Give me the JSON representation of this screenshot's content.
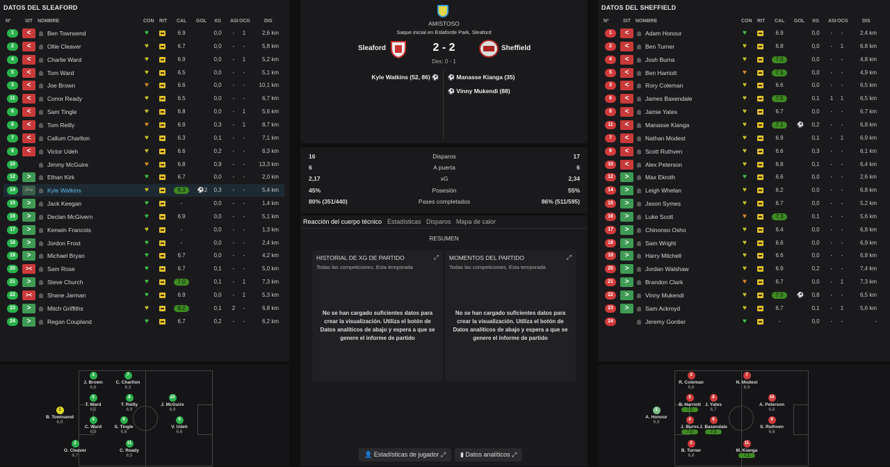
{
  "left": {
    "title": "DATOS DEL SLEAFORD",
    "headers": {
      "no": "Nº",
      "sit": "SIT",
      "nombre": "NOMBRE",
      "con": "CON",
      "rit": "RIT",
      "cal": "CAL",
      "gol": "GOL",
      "xg": "XG",
      "asi": "ASI",
      "ocg": "OCG",
      "dis": "DIS"
    },
    "rows": [
      {
        "n": "1",
        "c": "g",
        "sit": "sub",
        "sl": "<",
        "name": "Ben Townsend",
        "h": "g",
        "cal": "6.9",
        "hi": false,
        "gol": "",
        "xg": "0,0",
        "asi": "-",
        "ocg": "1",
        "dis": "2,6 km"
      },
      {
        "n": "2",
        "c": "g",
        "sit": "sub",
        "sl": "<",
        "name": "Ollie Cleaver",
        "h": "y",
        "cal": "6.7",
        "hi": false,
        "gol": "",
        "xg": "0,0",
        "asi": "-",
        "ocg": "-",
        "dis": "5,8 km"
      },
      {
        "n": "4",
        "c": "g",
        "sit": "sub",
        "sl": "<",
        "name": "Charlie Ward",
        "h": "y",
        "cal": "6.9",
        "hi": false,
        "gol": "",
        "xg": "0,0",
        "asi": "-",
        "ocg": "1",
        "dis": "5,2 km"
      },
      {
        "n": "5",
        "c": "g",
        "sit": "sub",
        "sl": "<",
        "name": "Tom Ward",
        "h": "y",
        "cal": "6.5",
        "hi": false,
        "gol": "",
        "xg": "0,0",
        "asi": "-",
        "ocg": "-",
        "dis": "5,1 km"
      },
      {
        "n": "3",
        "c": "g",
        "sit": "sub",
        "sl": "<",
        "name": "Joe Brown",
        "h": "o",
        "cal": "6.6",
        "hi": false,
        "gol": "",
        "xg": "0,0",
        "asi": "-",
        "ocg": "-",
        "dis": "10,1 km"
      },
      {
        "n": "11",
        "c": "g",
        "sit": "sub",
        "sl": "<",
        "name": "Conor Ready",
        "h": "y",
        "cal": "6.5",
        "hi": false,
        "gol": "",
        "xg": "0,0",
        "asi": "-",
        "ocg": "-",
        "dis": "6,7 km"
      },
      {
        "n": "6",
        "c": "g",
        "sit": "sub",
        "sl": "<",
        "name": "Sam Tingle",
        "h": "y",
        "cal": "6.8",
        "hi": false,
        "gol": "",
        "xg": "0,0",
        "asi": "-",
        "ocg": "1",
        "dis": "5,6 km"
      },
      {
        "n": "8",
        "c": "g",
        "sit": "sub",
        "sl": "<",
        "name": "Tom Reilly",
        "h": "o",
        "cal": "6.9",
        "hi": false,
        "gol": "",
        "xg": "0,3",
        "asi": "-",
        "ocg": "1",
        "dis": "8,7 km"
      },
      {
        "n": "7",
        "c": "g",
        "sit": "sub",
        "sl": "<",
        "name": "Callum Charlton",
        "h": "y",
        "cal": "6.3",
        "hi": false,
        "gol": "",
        "xg": "0,1",
        "asi": "-",
        "ocg": "-",
        "dis": "7,1 km"
      },
      {
        "n": "9",
        "c": "g",
        "sit": "sub",
        "sl": "<",
        "name": "Victor Udeh",
        "h": "y",
        "cal": "6.6",
        "hi": false,
        "gol": "",
        "xg": "0,2",
        "asi": "-",
        "ocg": "-",
        "dis": "6,3 km"
      },
      {
        "n": "10",
        "c": "g",
        "sit": "none",
        "sl": "",
        "name": "Jimmy McGuire",
        "h": "o",
        "cal": "6.8",
        "hi": false,
        "gol": "",
        "xg": "0,9",
        "asi": "-",
        "ocg": "-",
        "dis": "13,3 km"
      },
      {
        "n": "12",
        "c": "g",
        "sit": "bench",
        "sl": ">",
        "name": "Ethan Kirk",
        "h": "g",
        "cal": "6.7",
        "hi": false,
        "gol": "",
        "xg": "0,0",
        "asi": "-",
        "ocg": "-",
        "dis": "2,0 km"
      },
      {
        "n": "14",
        "c": "g",
        "sit": "ply",
        "sl": "JPar",
        "name": "Kyle Watkins",
        "h": "y",
        "cal": "8.3",
        "hi": true,
        "gol": "⚽2",
        "xg": "0,3",
        "asi": "-",
        "ocg": "-",
        "dis": "5,4 km",
        "sel": true
      },
      {
        "n": "15",
        "c": "g",
        "sit": "bench",
        "sl": ">",
        "name": "Jack Keegan",
        "h": "g",
        "cal": "-",
        "hi": false,
        "gol": "",
        "xg": "0,0",
        "asi": "-",
        "ocg": "-",
        "dis": "1,4 km"
      },
      {
        "n": "16",
        "c": "g",
        "sit": "bench",
        "sl": ">",
        "name": "Declan McGivern",
        "h": "g",
        "cal": "6.9",
        "hi": false,
        "gol": "",
        "xg": "0,0",
        "asi": "-",
        "ocg": "-",
        "dis": "5,1 km"
      },
      {
        "n": "17",
        "c": "g",
        "sit": "bench",
        "sl": ">",
        "name": "Kenwin Francois",
        "h": "y",
        "cal": "-",
        "hi": false,
        "gol": "",
        "xg": "0,0",
        "asi": "-",
        "ocg": "-",
        "dis": "1,3 km"
      },
      {
        "n": "18",
        "c": "g",
        "sit": "bench",
        "sl": ">",
        "name": "Jordon Frost",
        "h": "g",
        "cal": "-",
        "hi": false,
        "gol": "",
        "xg": "0,0",
        "asi": "-",
        "ocg": "-",
        "dis": "2,4 km"
      },
      {
        "n": "19",
        "c": "g",
        "sit": "bench",
        "sl": ">",
        "name": "Michael Bryan",
        "h": "g",
        "cal": "6.7",
        "hi": false,
        "gol": "",
        "xg": "0,0",
        "asi": "-",
        "ocg": "-",
        "dis": "4,2 km"
      },
      {
        "n": "20",
        "c": "g",
        "sit": "off",
        "sl": "><",
        "name": "Sam Rose",
        "h": "g",
        "cal": "6.7",
        "hi": false,
        "gol": "",
        "xg": "0,1",
        "asi": "-",
        "ocg": "-",
        "dis": "5,0 km"
      },
      {
        "n": "21",
        "c": "g",
        "sit": "bench",
        "sl": ">",
        "name": "Steve Church",
        "h": "g",
        "cal": "7.0",
        "hi": true,
        "gol": "",
        "xg": "0,1",
        "asi": "-",
        "ocg": "1",
        "dis": "7,3 km"
      },
      {
        "n": "22",
        "c": "g",
        "sit": "off",
        "sl": "><",
        "name": "Shane Jarman",
        "h": "g",
        "cal": "6.9",
        "hi": false,
        "gol": "",
        "xg": "0,0",
        "asi": "-",
        "ocg": "1",
        "dis": "5,3 km"
      },
      {
        "n": "23",
        "c": "g",
        "sit": "bench",
        "sl": ">",
        "name": "Mitch Griffiths",
        "h": "y",
        "cal": "8.2",
        "hi": true,
        "gol": "",
        "xg": "0,1",
        "asi": "2",
        "ocg": "-",
        "dis": "6,8 km"
      },
      {
        "n": "24",
        "c": "g",
        "sit": "bench",
        "sl": ">",
        "name": "Regan Coupland",
        "h": "g",
        "cal": "6.7",
        "hi": false,
        "gol": "",
        "xg": "0,2",
        "asi": "-",
        "ocg": "-",
        "dis": "6,2 km"
      }
    ]
  },
  "right": {
    "title": "DATOS DEL SHEFFIELD",
    "headers": {
      "no": "Nº",
      "sit": "SIT",
      "nombre": "NOMBRE",
      "con": "CON",
      "rit": "RIT",
      "cal": "CAL",
      "gol": "GOL",
      "xg": "XG",
      "asi": "ASI",
      "ocg": "OCG",
      "dis": "DIS"
    },
    "rows": [
      {
        "n": "1",
        "c": "r",
        "sit": "sub",
        "sl": "<",
        "name": "Adam Honour",
        "h": "g",
        "cal": "6.9",
        "hi": false,
        "gol": "",
        "xg": "0,0",
        "asi": "-",
        "ocg": "-",
        "dis": "2,4 km"
      },
      {
        "n": "2",
        "c": "r",
        "sit": "sub",
        "sl": "<",
        "name": "Ben Turner",
        "h": "y",
        "cal": "6.8",
        "hi": false,
        "gol": "",
        "xg": "0,0",
        "asi": "-",
        "ocg": "1",
        "dis": "6,8 km"
      },
      {
        "n": "4",
        "c": "r",
        "sit": "sub",
        "sl": "<",
        "name": "Josh Burns",
        "h": "y",
        "cal": "7.0",
        "hi": true,
        "gol": "",
        "xg": "0,0",
        "asi": "-",
        "ocg": "-",
        "dis": "4,8 km"
      },
      {
        "n": "5",
        "c": "r",
        "sit": "sub",
        "sl": "<",
        "name": "Ben Harriott",
        "h": "o",
        "cal": "7.5",
        "hi": true,
        "gol": "",
        "xg": "0,0",
        "asi": "-",
        "ocg": "-",
        "dis": "4,9 km"
      },
      {
        "n": "3",
        "c": "r",
        "sit": "sub",
        "sl": "<",
        "name": "Rory Coleman",
        "h": "y",
        "cal": "6.6",
        "hi": false,
        "gol": "",
        "xg": "0,0",
        "asi": "-",
        "ocg": "-",
        "dis": "6,5 km"
      },
      {
        "n": "6",
        "c": "r",
        "sit": "sub",
        "sl": "<",
        "name": "James Baxendale",
        "h": "y",
        "cal": "7.5",
        "hi": true,
        "gol": "",
        "xg": "0,1",
        "asi": "1",
        "ocg": "1",
        "dis": "6,5 km"
      },
      {
        "n": "8",
        "c": "r",
        "sit": "sub",
        "sl": "<",
        "name": "Jamie Yates",
        "h": "y",
        "cal": "6.7",
        "hi": false,
        "gol": "",
        "xg": "0,0",
        "asi": "-",
        "ocg": "-",
        "dis": "6,7 km"
      },
      {
        "n": "11",
        "c": "r",
        "sit": "sub",
        "sl": "<",
        "name": "Manasse Kianga",
        "h": "y",
        "cal": "7.1",
        "hi": true,
        "gol": "⚽",
        "xg": "0,2",
        "asi": "-",
        "ocg": "-",
        "dis": "6,8 km"
      },
      {
        "n": "7",
        "c": "r",
        "sit": "sub",
        "sl": "<",
        "name": "Nathan Modest",
        "h": "y",
        "cal": "6.9",
        "hi": false,
        "gol": "",
        "xg": "0,1",
        "asi": "-",
        "ocg": "1",
        "dis": "6,9 km"
      },
      {
        "n": "9",
        "c": "r",
        "sit": "sub",
        "sl": "<",
        "name": "Scott Ruthven",
        "h": "y",
        "cal": "6.6",
        "hi": false,
        "gol": "",
        "xg": "0,3",
        "asi": "-",
        "ocg": "-",
        "dis": "6,1 km"
      },
      {
        "n": "10",
        "c": "r",
        "sit": "sub",
        "sl": "<",
        "name": "Alex Peterson",
        "h": "y",
        "cal": "6.8",
        "hi": false,
        "gol": "",
        "xg": "0,1",
        "asi": "-",
        "ocg": "-",
        "dis": "6,4 km"
      },
      {
        "n": "12",
        "c": "r",
        "sit": "bench",
        "sl": ">",
        "name": "Max Ekroth",
        "h": "g",
        "cal": "6.6",
        "hi": false,
        "gol": "",
        "xg": "0,0",
        "asi": "-",
        "ocg": "-",
        "dis": "2,6 km"
      },
      {
        "n": "14",
        "c": "r",
        "sit": "bench",
        "sl": ">",
        "name": "Leigh Whelan",
        "h": "y",
        "cal": "6.2",
        "hi": false,
        "gol": "",
        "xg": "0,0",
        "asi": "-",
        "ocg": "-",
        "dis": "6,8 km"
      },
      {
        "n": "15",
        "c": "r",
        "sit": "bench",
        "sl": ">",
        "name": "Jason Symes",
        "h": "y",
        "cal": "6.7",
        "hi": false,
        "gol": "",
        "xg": "0,0",
        "asi": "-",
        "ocg": "-",
        "dis": "5,2 km"
      },
      {
        "n": "16",
        "c": "r",
        "sit": "bench",
        "sl": ">",
        "name": "Luke Scott",
        "h": "o",
        "cal": "7.3",
        "hi": true,
        "gol": "",
        "xg": "0,1",
        "asi": "-",
        "ocg": "-",
        "dis": "5,6 km"
      },
      {
        "n": "17",
        "c": "r",
        "sit": "bench",
        "sl": ">",
        "name": "Chinonso Osho",
        "h": "y",
        "cal": "6.4",
        "hi": false,
        "gol": "",
        "xg": "0,0",
        "asi": "-",
        "ocg": "-",
        "dis": "6,8 km"
      },
      {
        "n": "18",
        "c": "r",
        "sit": "bench",
        "sl": ">",
        "name": "Sam Wright",
        "h": "y",
        "cal": "6.6",
        "hi": false,
        "gol": "",
        "xg": "0,0",
        "asi": "-",
        "ocg": "-",
        "dis": "6,9 km"
      },
      {
        "n": "19",
        "c": "r",
        "sit": "bench",
        "sl": ">",
        "name": "Harry Mitchell",
        "h": "y",
        "cal": "6.6",
        "hi": false,
        "gol": "",
        "xg": "0,0",
        "asi": "-",
        "ocg": "-",
        "dis": "6,8 km"
      },
      {
        "n": "20",
        "c": "r",
        "sit": "bench",
        "sl": ">",
        "name": "Jordan Walshaw",
        "h": "y",
        "cal": "6.9",
        "hi": false,
        "gol": "",
        "xg": "0,2",
        "asi": "-",
        "ocg": "-",
        "dis": "7,4 km"
      },
      {
        "n": "21",
        "c": "r",
        "sit": "bench",
        "sl": ">",
        "name": "Brandon Clark",
        "h": "o",
        "cal": "6.7",
        "hi": false,
        "gol": "",
        "xg": "0,0",
        "asi": "-",
        "ocg": "1",
        "dis": "7,3 km"
      },
      {
        "n": "22",
        "c": "r",
        "sit": "bench",
        "sl": ">",
        "name": "Vinny Mukendi",
        "h": "y",
        "cal": "7.5",
        "hi": true,
        "gol": "⚽",
        "xg": "0,8",
        "asi": "-",
        "ocg": "-",
        "dis": "6,5 km"
      },
      {
        "n": "23",
        "c": "r",
        "sit": "bench",
        "sl": ">",
        "name": "Sam Ackroyd",
        "h": "y",
        "cal": "6.7",
        "hi": false,
        "gol": "",
        "xg": "0,1",
        "asi": "-",
        "ocg": "1",
        "dis": "5,6 km"
      },
      {
        "n": "24",
        "c": "r",
        "sit": "none",
        "sl": "",
        "name": "Jeremy Gontier",
        "h": "g",
        "cal": "-",
        "hi": false,
        "gol": "",
        "xg": "0,0",
        "asi": "-",
        "ocg": "-",
        "dis": "-"
      }
    ]
  },
  "match": {
    "type": "AMISTOSO",
    "venue": "Saque inicial en Eslaforde Park, Sleaford",
    "home": "Sleaford",
    "away": "Sheffield",
    "score": "2 - 2",
    "des": "Des: 0 - 1",
    "home_scorers": [
      "Kyle Watkins (52, 86)"
    ],
    "away_scorers": [
      "Manasse Kianga (35)",
      "Vinny Mukendi (88)"
    ]
  },
  "stats": [
    {
      "l": "16",
      "label": "Disparos",
      "r": "17"
    },
    {
      "l": "6",
      "label": "A puerta",
      "r": "6"
    },
    {
      "l": "2,17",
      "label": "xG",
      "r": "2,34"
    },
    {
      "l": "45%",
      "label": "Posesión",
      "r": "55%"
    },
    {
      "l": "80% (351/440)",
      "label": "Pases completados",
      "r": "86% (511/595)"
    }
  ],
  "tabs": [
    "Reacción del cuerpo técnico",
    "Estadísticas",
    "Disparos",
    "Mapa de calor"
  ],
  "resumen": "RESUMEN",
  "box1": {
    "title": "HISTORIAL DE XG DE PARTIDO",
    "sub": "Todas las competiciones, Esta temporada",
    "msg": "No se han cargado suficientes datos para crear la visualización. Utiliza el botón de Datos analíticos de abajo y espera a que se genere el informe de partido"
  },
  "box2": {
    "title": "MOMENTOS DEL PARTIDO",
    "sub": "Todas las competiciones, Esta temporada",
    "msg": "No se han cargado suficientes datos para crear la visualización. Utiliza el botón de Datos analíticos de abajo y espera a que se genere el informe de partido"
  },
  "buttons": {
    "player_stats": "Estadísticas de jugador",
    "analytics": "Datos analíticos"
  },
  "left_pitch": [
    {
      "n": "3",
      "nm": "J. Brown",
      "rt": "6,6",
      "c": "g"
    },
    {
      "n": "7",
      "nm": "C. Charlton",
      "rt": "6,3",
      "c": "g"
    },
    {
      "n": "1",
      "nm": "B. Townsend",
      "rt": "6,9",
      "c": "y"
    },
    {
      "n": "5",
      "nm": "T. Ward",
      "rt": "6,5",
      "c": "g"
    },
    {
      "n": "8",
      "nm": "T. Reilly",
      "rt": "6,9",
      "c": "g"
    },
    {
      "n": "10",
      "nm": "J. McGuire",
      "rt": "6,8",
      "c": "g"
    },
    {
      "n": "4",
      "nm": "C. Ward",
      "rt": "6,9",
      "c": "g"
    },
    {
      "n": "6",
      "nm": "S. Tingle",
      "rt": "6,8",
      "c": "g"
    },
    {
      "n": "9",
      "nm": "V. Udeh",
      "rt": "6,6",
      "c": "g"
    },
    {
      "n": "2",
      "nm": "O. Cleaver",
      "rt": "6,7",
      "c": "g"
    },
    {
      "n": "11",
      "nm": "C. Ready",
      "rt": "6,5",
      "c": "g"
    }
  ],
  "right_pitch": [
    {
      "n": "3",
      "nm": "R. Coleman",
      "rt": "6,6",
      "c": "r"
    },
    {
      "n": "7",
      "nm": "N. Modest",
      "rt": "6,9",
      "c": "r"
    },
    {
      "n": "1",
      "nm": "A. Honour",
      "rt": "6,9",
      "c": "gk"
    },
    {
      "n": "5",
      "nm": "B. Harriott",
      "rt": "7,5",
      "c": "r"
    },
    {
      "n": "8",
      "nm": "J. Yates",
      "rt": "6,7",
      "c": "r"
    },
    {
      "n": "10",
      "nm": "A. Peterson",
      "rt": "6,8",
      "c": "r"
    },
    {
      "n": "4",
      "nm": "J. Burns",
      "rt": "7,0",
      "c": "r"
    },
    {
      "n": "6",
      "nm": "J. Baxendale",
      "rt": "7,5",
      "c": "r"
    },
    {
      "n": "9",
      "nm": "S. Ruthven",
      "rt": "6,6",
      "c": "r"
    },
    {
      "n": "2",
      "nm": "B. Turner",
      "rt": "6,8",
      "c": "r"
    },
    {
      "n": "11",
      "nm": "M. Kianga",
      "rt": "7,1",
      "c": "r"
    }
  ],
  "colors": {
    "green": "#2bb24c",
    "red": "#d23b3b",
    "yellow_heart": "#c9c428",
    "orange_heart": "#d9892a",
    "accent": "#5fb9e6"
  }
}
